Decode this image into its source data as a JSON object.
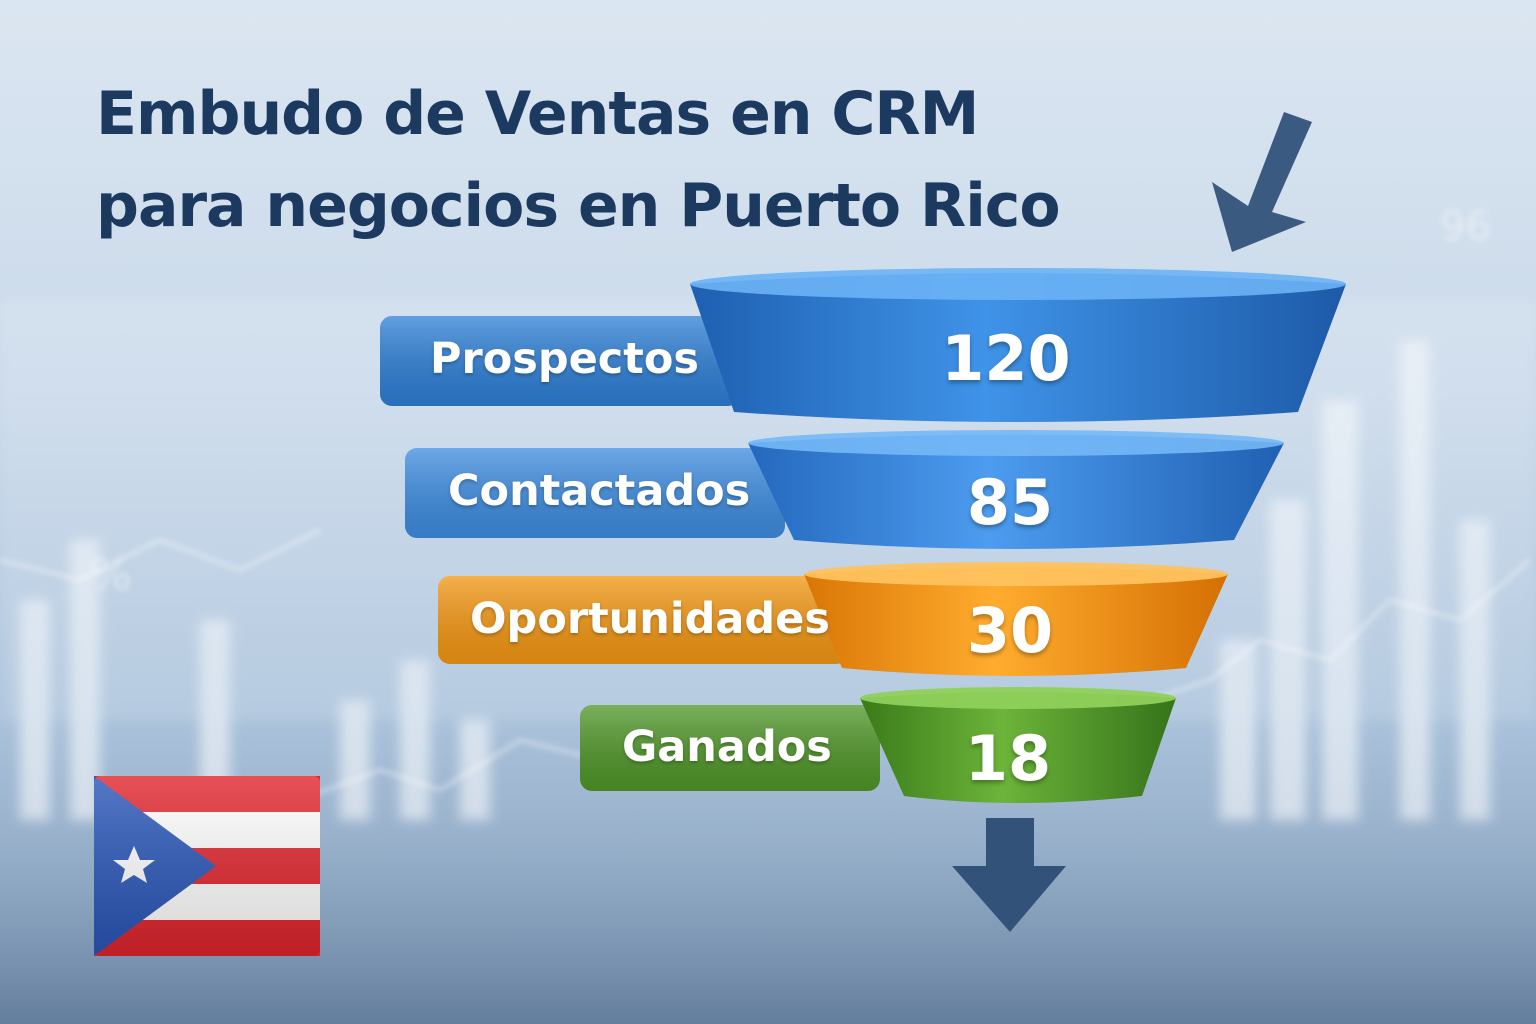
{
  "title": {
    "line1": "Embudo de Ventas en CRM",
    "line2": "para negocios en Puerto Rico"
  },
  "chart_data": {
    "type": "funnel",
    "title": "Embudo de Ventas en CRM para negocios en Puerto Rico",
    "stages": [
      {
        "label": "Prospectos",
        "value": 120,
        "color": "#2d7fd6"
      },
      {
        "label": "Contactados",
        "value": 85,
        "color": "#3d8ce0"
      },
      {
        "label": "Oportunidades",
        "value": 30,
        "color": "#f39712"
      },
      {
        "label": "Ganados",
        "value": 18,
        "color": "#4f9628"
      }
    ]
  },
  "icons": [
    "arrow-down-left-icon",
    "arrow-down-icon",
    "puerto-rico-flag-icon"
  ],
  "colors": {
    "title": "#1c3a5f",
    "arrow": "#33527a",
    "flag_red": "#e0252d",
    "flag_blue": "#2a56b8"
  }
}
